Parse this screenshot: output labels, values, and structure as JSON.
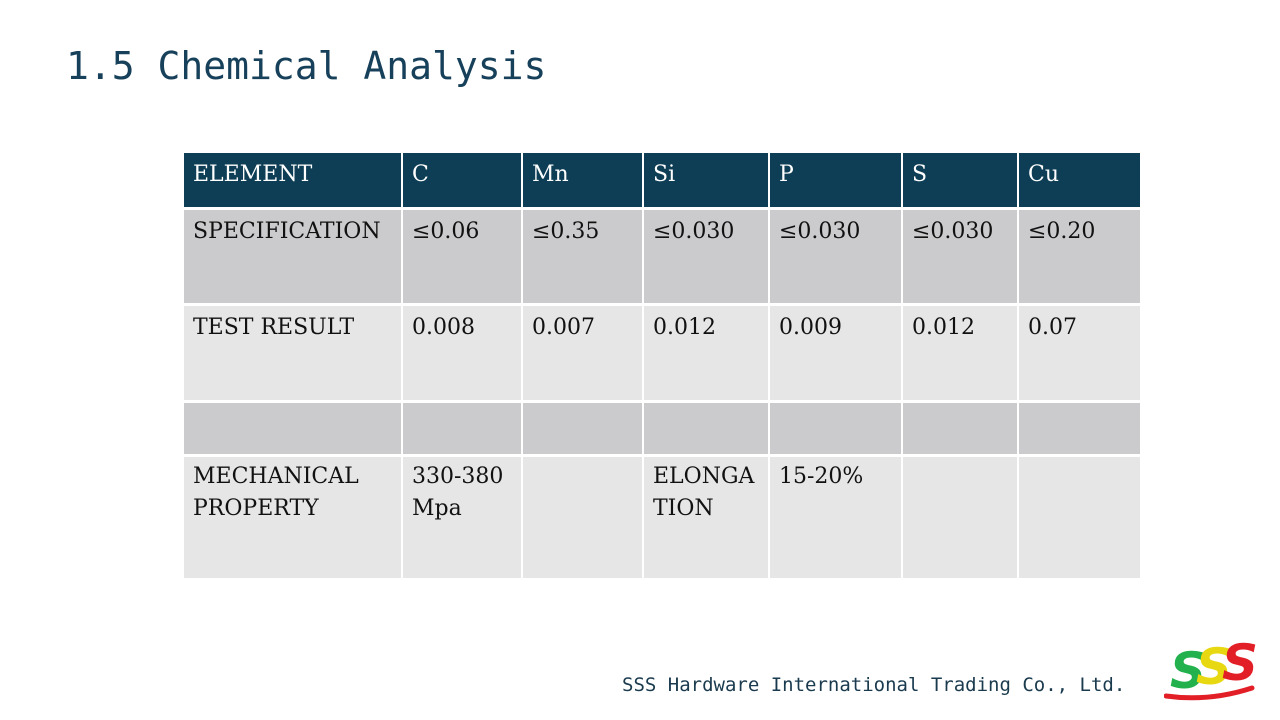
{
  "slide": {
    "title": "1.5 Chemical Analysis",
    "footer": "SSS Hardware International Trading Co., Ltd."
  },
  "logo": {
    "text": "SSS",
    "colors": [
      "#22b14c",
      "#e8d812",
      "#e21f26"
    ],
    "underline_color": "#e21f26"
  },
  "table": {
    "header_color": "#0e3e55",
    "headers": [
      "ELEMENT",
      "C",
      "Mn",
      "Si",
      "P",
      "S",
      "Cu"
    ],
    "rows": [
      [
        "SPECIFICATION",
        "≤0.06",
        "≤0.35",
        "≤0.030",
        "≤0.030",
        "≤0.030",
        "≤0.20"
      ],
      [
        "TEST RESULT",
        "0.008",
        "0.007",
        "0.012",
        "0.009",
        "0.012",
        "0.07"
      ],
      [
        "",
        "",
        "",
        "",
        "",
        "",
        ""
      ],
      [
        "MECHANICAL PROPERTY",
        "330-380 Mpa",
        "",
        "ELONGATION",
        "15-20%",
        "",
        ""
      ]
    ]
  }
}
